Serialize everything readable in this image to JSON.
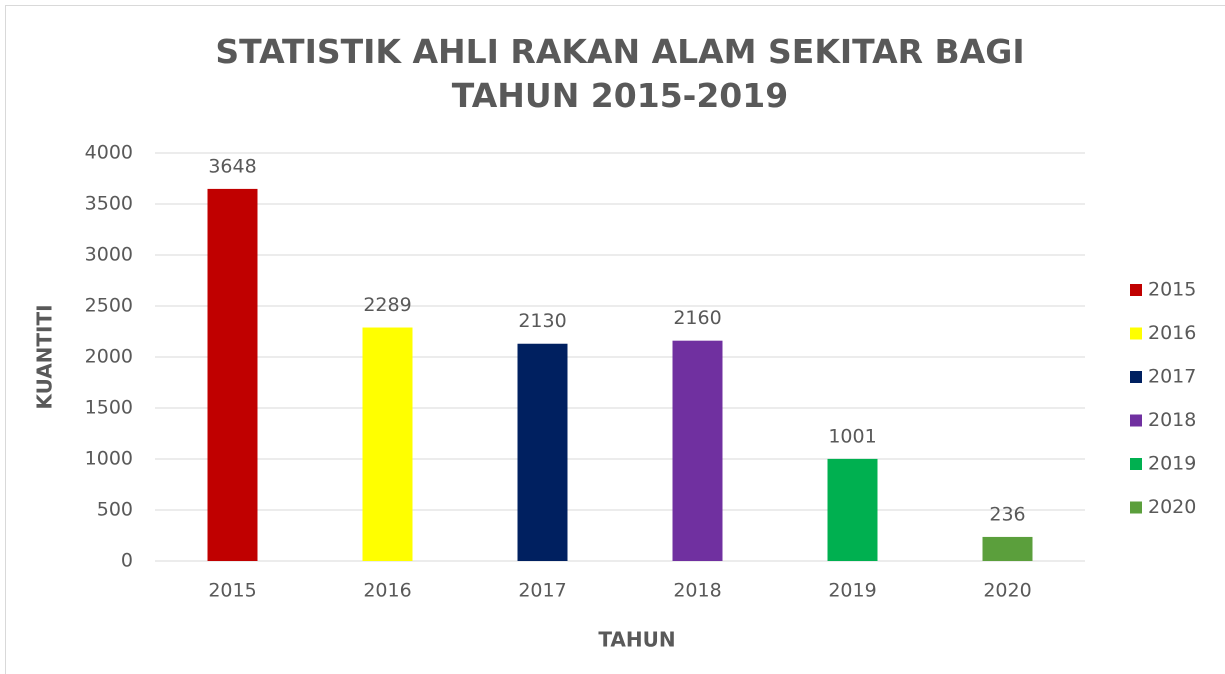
{
  "chart_data": {
    "type": "bar",
    "title": "STATISTIK AHLI RAKAN ALAM SEKITAR BAGI TAHUN 2015-2019",
    "x_label": "TAHUN",
    "y_label": "KUANTITI",
    "categories": [
      "2015",
      "2016",
      "2017",
      "2018",
      "2019",
      "2020"
    ],
    "values": [
      3648,
      2289,
      2130,
      2160,
      1001,
      236
    ],
    "colors": [
      "#c00000",
      "#ffff00",
      "#002060",
      "#7030a0",
      "#00b050",
      "#5b9f3c"
    ],
    "ylim": [
      0,
      4000
    ],
    "yticks": [
      0,
      500,
      1000,
      1500,
      2000,
      2500,
      3000,
      3500,
      4000
    ],
    "grid": true,
    "legend": "right"
  }
}
